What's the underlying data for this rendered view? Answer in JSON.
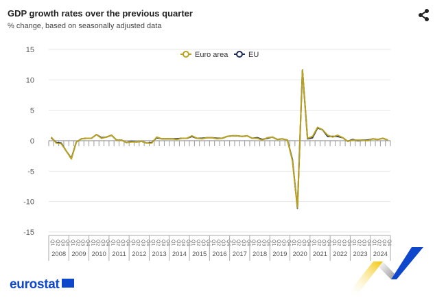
{
  "header": {
    "title": "GDP growth rates over the previous quarter",
    "subtitle": "% change, based on seasonally adjusted data",
    "share_icon": "share-icon"
  },
  "branding": {
    "logo_text": "eurostat"
  },
  "chart_data": {
    "type": "line",
    "title": "GDP growth rates over the previous quarter",
    "subtitle": "% change, based on seasonally adjusted data",
    "xlabel": "",
    "ylabel": "",
    "ylim": [
      -15,
      15
    ],
    "yticks": [
      15,
      10,
      5,
      0,
      -5,
      -10,
      -15
    ],
    "grid": true,
    "legend": "top-center",
    "years": [
      "2008",
      "2009",
      "2010",
      "2011",
      "2012",
      "2013",
      "2014",
      "2015",
      "2016",
      "2017",
      "2018",
      "2019",
      "2020",
      "2021",
      "2022",
      "2023",
      "2024"
    ],
    "quarters": [
      "Q1",
      "Q2",
      "Q3",
      "Q4"
    ],
    "series": [
      {
        "name": "Euro area",
        "color": "#b9a21e",
        "values": [
          0.6,
          -0.4,
          -0.5,
          -1.7,
          -3.0,
          -0.2,
          0.3,
          0.4,
          0.4,
          1.0,
          0.4,
          0.6,
          0.9,
          0.1,
          0.1,
          -0.3,
          -0.2,
          -0.2,
          -0.1,
          -0.4,
          -0.4,
          0.6,
          0.3,
          0.3,
          0.3,
          0.2,
          0.4,
          0.4,
          0.8,
          0.4,
          0.3,
          0.5,
          0.5,
          0.3,
          0.4,
          0.7,
          0.8,
          0.8,
          0.7,
          0.8,
          0.4,
          0.4,
          0.1,
          0.5,
          0.6,
          0.2,
          0.3,
          0.1,
          -3.3,
          -11.0,
          11.6,
          0.4,
          0.7,
          2.2,
          1.8,
          0.9,
          0.6,
          0.9,
          0.5,
          -0.1,
          0.1,
          0.1,
          0.1,
          0.0,
          0.3,
          0.2,
          0.4,
          0.1
        ]
      },
      {
        "name": "EU",
        "color": "#1d2a55",
        "values": [
          0.5,
          -0.3,
          -0.4,
          -1.7,
          -2.9,
          -0.2,
          0.3,
          0.4,
          0.4,
          1.0,
          0.5,
          0.6,
          0.9,
          0.1,
          0.1,
          -0.3,
          -0.1,
          -0.2,
          -0.1,
          -0.4,
          -0.3,
          0.5,
          0.3,
          0.3,
          0.3,
          0.3,
          0.4,
          0.4,
          0.7,
          0.4,
          0.4,
          0.5,
          0.5,
          0.4,
          0.4,
          0.7,
          0.8,
          0.8,
          0.7,
          0.8,
          0.4,
          0.5,
          0.2,
          0.4,
          0.6,
          0.2,
          0.3,
          0.1,
          -3.1,
          -11.1,
          11.6,
          0.3,
          0.5,
          2.1,
          1.8,
          0.7,
          0.7,
          0.7,
          0.5,
          -0.1,
          0.2,
          0.0,
          0.1,
          0.1,
          0.3,
          0.2,
          0.4,
          0.1
        ]
      }
    ]
  }
}
